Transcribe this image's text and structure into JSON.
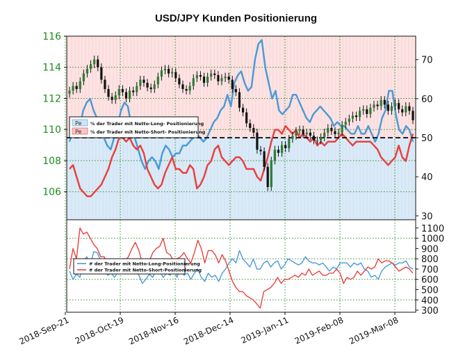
{
  "chart_data": {
    "title": "USD/JPY Kunden Positionierung",
    "x_dates": [
      "2018-Sep-21",
      "2018-Oct-19",
      "2018-Nov-16",
      "2018-Dec-14",
      "2019-Jan-11",
      "2019-Feb-08",
      "2019-Mar-08"
    ],
    "colors": {
      "long": "#4b9bd8",
      "short": "#e8423f",
      "candle_up": "#2e7d32",
      "candle_down": "#111111",
      "price_axis": "#1a8c1a",
      "long_fill": "#dbeaf7",
      "short_fill": "#fde3e3",
      "grid": "#2e8b2e"
    },
    "top_panel": {
      "type": "line",
      "left_axis": {
        "ticks": [
          106,
          108,
          110,
          112,
          114,
          116
        ],
        "range": [
          104.2,
          116
        ]
      },
      "right_axis": {
        "ticks": [
          30,
          40,
          50,
          60,
          70
        ],
        "range": [
          29,
          76
        ]
      },
      "threshold": 50,
      "legend": [
        {
          "swatch_text": "Pe",
          "label": "% der Trader mit Netto-Long- Positionierung"
        },
        {
          "swatch_text": "Pe",
          "label": "% der Trader mit Netto-Short- Positionierung"
        }
      ],
      "price_ohlc_close": [
        112.5,
        112.8,
        112.6,
        113.1,
        113.6,
        113.9,
        114.2,
        114.5,
        114.0,
        113.2,
        112.6,
        112.1,
        111.9,
        112.2,
        112.6,
        112.4,
        112.0,
        112.5,
        112.4,
        112.8,
        113.2,
        113.0,
        112.7,
        112.6,
        112.9,
        113.4,
        113.8,
        113.9,
        113.6,
        113.7,
        113.3,
        112.9,
        112.6,
        112.5,
        112.8,
        113.3,
        113.5,
        113.4,
        113.0,
        113.4,
        113.6,
        113.5,
        113.1,
        113.3,
        113.4,
        113.2,
        112.6,
        112.4,
        111.4,
        111.1,
        110.4,
        110.1,
        109.8,
        108.7,
        108.6,
        107.6,
        106.3,
        108.0,
        108.7,
        108.5,
        109.0,
        108.8,
        109.4,
        109.6,
        109.9,
        110.0,
        109.7,
        109.8,
        109.6,
        109.3,
        109.3,
        109.5,
        109.8,
        110.1,
        109.9,
        109.7,
        109.8,
        110.3,
        110.5,
        110.7,
        110.9,
        110.8,
        111.2,
        111.3,
        111.0,
        111.4,
        111.6,
        111.5,
        111.9,
        111.6,
        111.2,
        111.5,
        111.7,
        111.3,
        111.1,
        111.5,
        111.2,
        110.6
      ],
      "long_pct": [
        49,
        52,
        55,
        53,
        57,
        59,
        60,
        57,
        55,
        52,
        50,
        48,
        47,
        50,
        53,
        57,
        59,
        58,
        53,
        50,
        47,
        44,
        42,
        44,
        45,
        44,
        42,
        46,
        48,
        47,
        45,
        46,
        46,
        48,
        48,
        49,
        50,
        51,
        50,
        49,
        50,
        52,
        54,
        55,
        57,
        58,
        61,
        58,
        64,
        66,
        67,
        64,
        62,
        63,
        70,
        74,
        75,
        68,
        64,
        60,
        62,
        57,
        56,
        57,
        58,
        61,
        61,
        59,
        57,
        55,
        54,
        56,
        57,
        58,
        57,
        56,
        55,
        53,
        54,
        53,
        53,
        52,
        51,
        51,
        53,
        51,
        51,
        53,
        51,
        49,
        51,
        55,
        57,
        62,
        62,
        56,
        52,
        51,
        53,
        52,
        49
      ],
      "short_pct": [
        42,
        43,
        40,
        37,
        36,
        35,
        35,
        36,
        37,
        38,
        40,
        42,
        45,
        47,
        50,
        50,
        49,
        50,
        48,
        47,
        48,
        46,
        42,
        40,
        38,
        37,
        38,
        41,
        43,
        45,
        42,
        42,
        41,
        41,
        43,
        42,
        37,
        38,
        40,
        43,
        44,
        47,
        48,
        45,
        44,
        43,
        44,
        45,
        45,
        44,
        42,
        42,
        42,
        40,
        39,
        42,
        45,
        49,
        52,
        52,
        51,
        53,
        52,
        51,
        52,
        50,
        51,
        50,
        49,
        50,
        48,
        49,
        48,
        49,
        49,
        49,
        50,
        51,
        50,
        49,
        48,
        49,
        49,
        49,
        49,
        49,
        48,
        47,
        45,
        44,
        43,
        44,
        45,
        48,
        45,
        44,
        48,
        51
      ]
    },
    "bottom_panel": {
      "type": "line",
      "right_axis": {
        "ticks": [
          300,
          400,
          500,
          600,
          700,
          800,
          900,
          1000,
          1100
        ],
        "range": [
          280,
          1180
        ]
      },
      "legend": [
        {
          "label": "# der Trader mit Netto-Long-Positionierung"
        },
        {
          "label": "# der Trader mit Netto-Short-Positionierung"
        }
      ],
      "long_count": [
        680,
        600,
        650,
        620,
        780,
        820,
        740,
        870,
        860,
        780,
        700,
        640,
        660,
        620,
        680,
        760,
        700,
        720,
        740,
        690,
        640,
        560,
        600,
        650,
        620,
        700,
        680,
        620,
        660,
        640,
        700,
        620,
        720,
        640,
        660,
        600,
        660,
        700,
        620,
        580,
        660,
        620,
        640,
        580,
        660,
        700,
        760,
        800,
        760,
        880,
        800,
        760,
        720,
        800,
        700,
        700,
        760,
        780,
        720,
        760,
        780,
        700,
        740,
        800,
        780,
        760,
        740,
        760,
        820,
        780,
        760,
        760,
        740,
        760,
        720,
        680,
        720,
        700,
        760,
        760,
        760,
        720,
        760,
        740,
        760,
        700,
        680,
        620,
        640,
        600,
        680,
        720,
        740,
        760,
        740,
        760,
        760,
        780,
        720,
        700
      ],
      "short_count": [
        700,
        900,
        800,
        1100,
        1040,
        1060,
        1000,
        940,
        900,
        820,
        820,
        740,
        680,
        720,
        720,
        760,
        780,
        820,
        900,
        960,
        880,
        760,
        720,
        780,
        860,
        900,
        920,
        1000,
        860,
        840,
        780,
        800,
        820,
        860,
        800,
        760,
        860,
        980,
        900,
        760,
        880,
        880,
        840,
        760,
        840,
        780,
        680,
        580,
        520,
        480,
        480,
        440,
        420,
        400,
        360,
        320,
        480,
        500,
        520,
        560,
        620,
        560,
        600,
        600,
        620,
        640,
        620,
        660,
        640,
        700,
        640,
        660,
        680,
        640,
        640,
        660,
        660,
        700,
        660,
        560,
        620,
        600,
        620,
        680,
        640,
        680,
        720,
        700,
        720,
        800,
        760,
        780,
        780,
        760,
        720,
        680,
        700,
        720,
        700,
        660
      ]
    }
  }
}
